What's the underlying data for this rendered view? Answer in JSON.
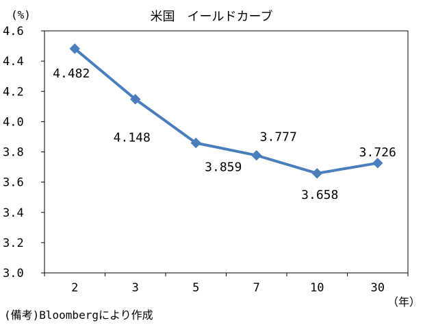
{
  "chart_data": {
    "type": "line",
    "title": "米国　イールドカーブ",
    "y_unit": "(%)",
    "x_unit": "（年）",
    "categories": [
      "2",
      "3",
      "5",
      "7",
      "10",
      "30"
    ],
    "values": [
      4.482,
      4.148,
      3.859,
      3.777,
      3.658,
      3.726
    ],
    "data_labels": [
      "4.482",
      "4.148",
      "3.859",
      "3.777",
      "3.658",
      "3.726"
    ],
    "ylim": [
      3.0,
      4.6
    ],
    "y_ticks": [
      "3.0",
      "3.2",
      "3.4",
      "3.6",
      "3.8",
      "4.0",
      "4.2",
      "4.4",
      "4.6"
    ],
    "grid": false,
    "series_color": "#4a7ebb",
    "note": "(備考)Bloombergにより作成"
  }
}
